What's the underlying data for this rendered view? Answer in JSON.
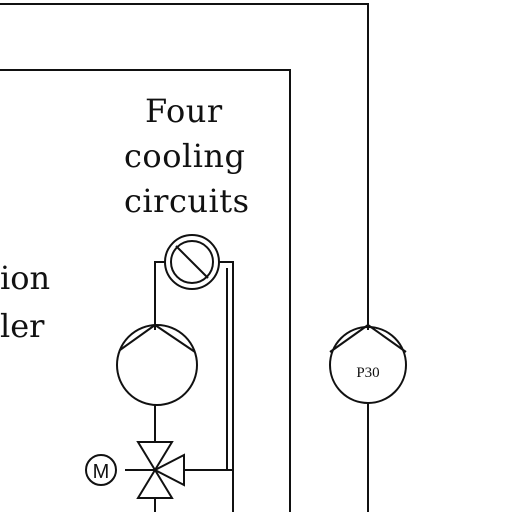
{
  "title_lines": [
    "Four",
    "cooling",
    "circuits"
  ],
  "left_partial_lines": [
    "ion",
    "ler"
  ],
  "pump_label": "P30",
  "motor_label": "M",
  "colors": {
    "line": "#111111",
    "background": "#ffffff"
  },
  "icons": [
    "heat-exchanger-icon",
    "pump-icon",
    "three-way-valve-icon",
    "motor-icon"
  ]
}
